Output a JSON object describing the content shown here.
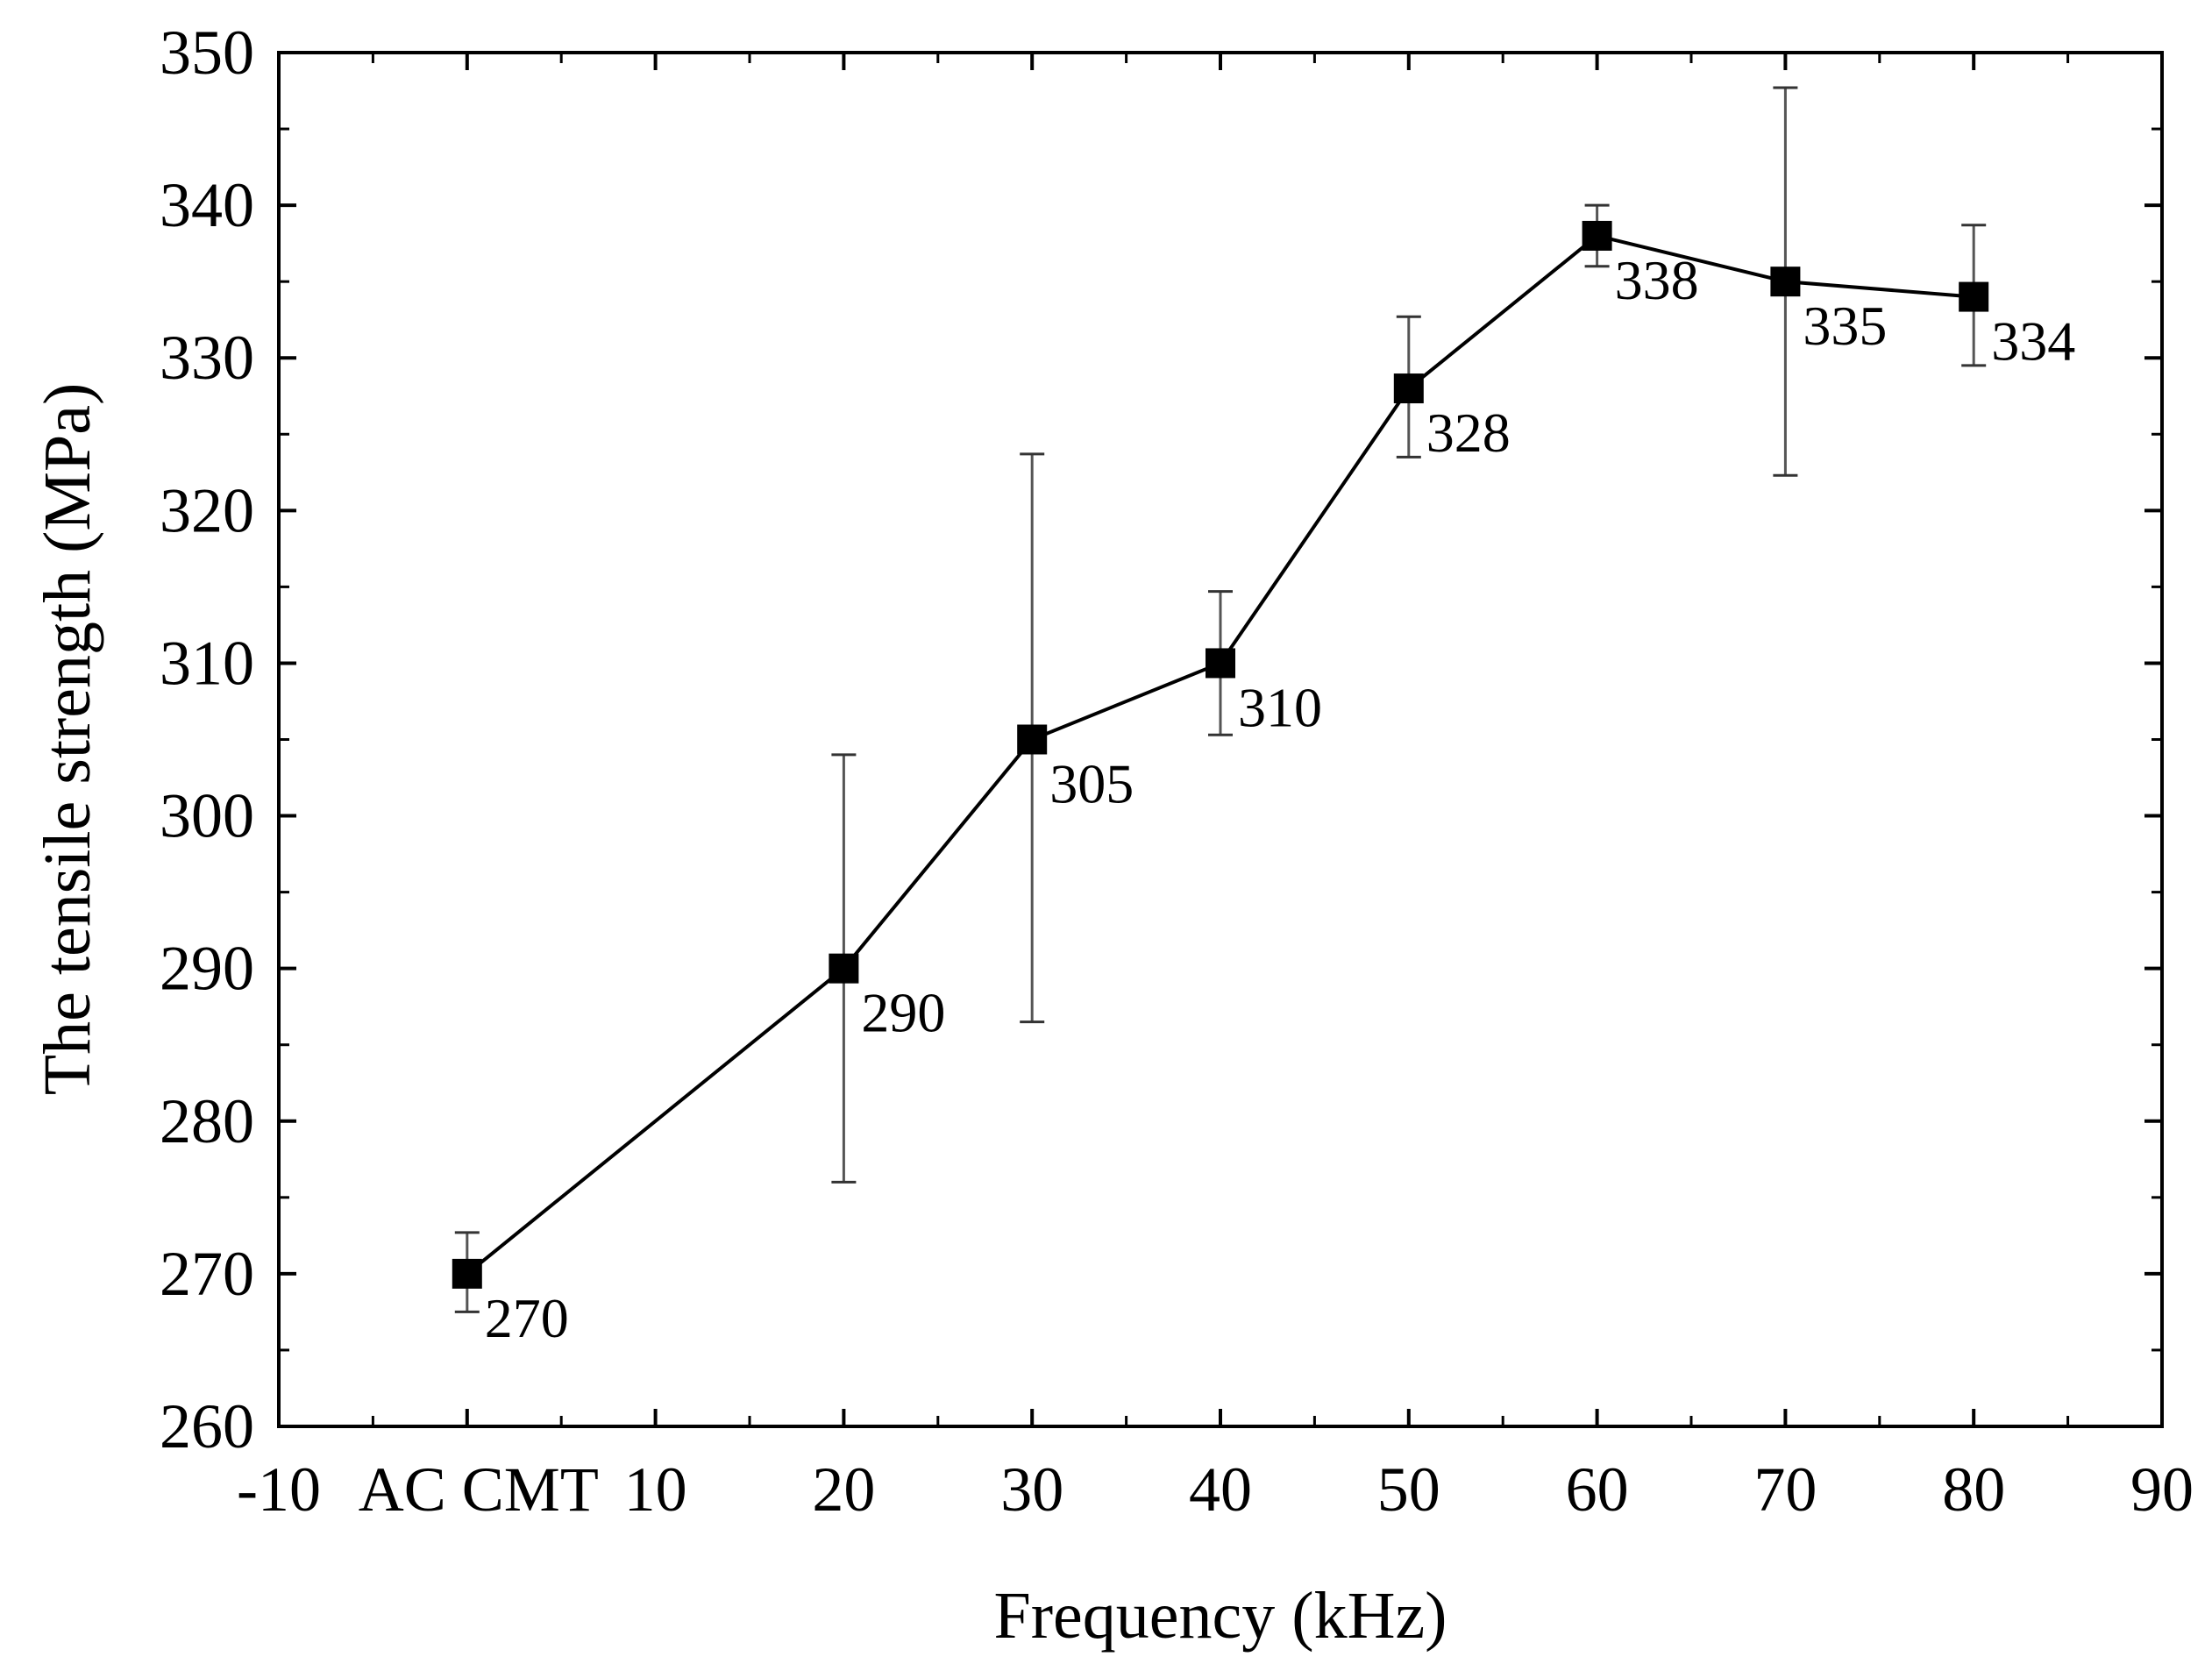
{
  "chart_data": {
    "type": "line",
    "title": "",
    "xlabel": "Frequency (kHz)",
    "ylabel": "The tensile strength (MPa)",
    "xlim": [
      -10,
      90
    ],
    "ylim": [
      260,
      350
    ],
    "x_ticks": [
      -10,
      0,
      10,
      20,
      30,
      40,
      50,
      60,
      70,
      80,
      90
    ],
    "x_tick_labels": [
      "-10",
      "AC CMT",
      "10",
      "20",
      "30",
      "40",
      "50",
      "60",
      "70",
      "80",
      "90"
    ],
    "y_ticks": [
      260,
      270,
      280,
      290,
      300,
      310,
      320,
      330,
      340,
      350
    ],
    "y_tick_labels": [
      "260",
      "270",
      "280",
      "290",
      "300",
      "310",
      "320",
      "330",
      "340",
      "350"
    ],
    "grid": false,
    "series": [
      {
        "name": "Tensile strength",
        "x": [
          0,
          20,
          30,
          40,
          50,
          60,
          70,
          80
        ],
        "values": [
          270,
          290,
          305,
          310,
          328,
          338,
          335,
          334
        ],
        "error_low": [
          267.5,
          276,
          286.5,
          305.3,
          323.5,
          336,
          322.3,
          329.5
        ],
        "error_high": [
          272.7,
          304,
          323.7,
          314.7,
          332.7,
          340,
          347.7,
          338.7
        ],
        "data_labels": [
          "270",
          "290",
          "305",
          "310",
          "328",
          "338",
          "335",
          "334"
        ],
        "color": "#000000",
        "marker": "square"
      }
    ]
  }
}
